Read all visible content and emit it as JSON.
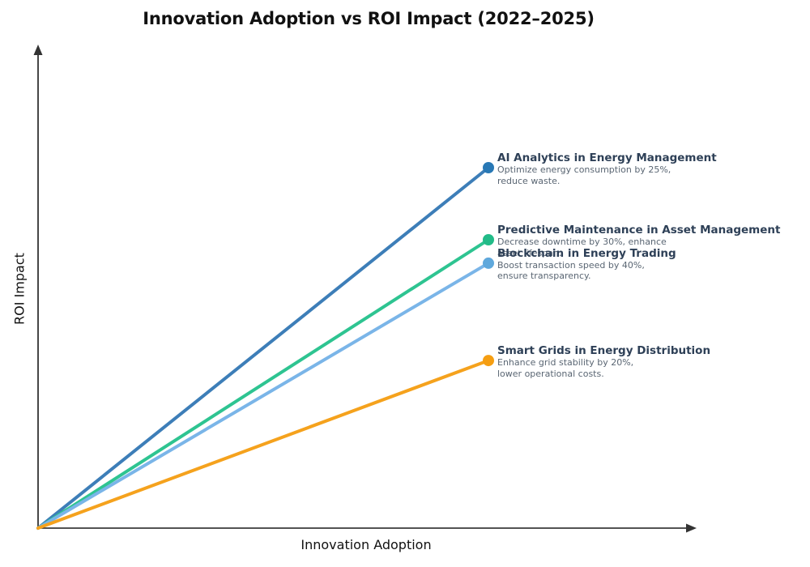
{
  "title": "Innovation Adoption vs ROI Impact (2022–2025)",
  "axes": {
    "x_label": "Innovation Adoption",
    "y_label": "ROI Impact"
  },
  "chart_data": {
    "type": "line",
    "title": "Innovation Adoption vs ROI Impact (2022–2025)",
    "xlabel": "Innovation Adoption",
    "ylabel": "ROI Impact",
    "grid": false,
    "legend": "none — each line labeled by annotation at its endpoint",
    "axis_ticks": "none (unlabeled conceptual axes with arrowheads)",
    "x_range": [
      0,
      1
    ],
    "y_range": [
      0,
      100
    ],
    "y_scale_note": "relative ROI impact estimated from pixel heights, 0–100",
    "axis_color": "#1a1a1a",
    "annotation_title_color": "#2e4057",
    "annotation_desc_color": "#5a6673",
    "series": [
      {
        "name": "AI Analytics in Energy Management",
        "description_lines": [
          "Optimize energy consumption by 25%,",
          "reduce waste."
        ],
        "points": [
          [
            0,
            0
          ],
          [
            1,
            100
          ]
        ],
        "end_value": 100,
        "color": "#3d7eb8",
        "dot_color": "#2878b5"
      },
      {
        "name": "Predictive Maintenance in Asset Management",
        "description_lines": [
          "Decrease downtime by 30%, enhance",
          "asset lifespan."
        ],
        "points": [
          [
            0,
            0
          ],
          [
            1,
            80
          ]
        ],
        "end_value": 80,
        "color": "#2ec491",
        "dot_color": "#22bb88"
      },
      {
        "name": "Blockchain in Energy Trading",
        "description_lines": [
          "Boost transaction speed by 40%,",
          "ensure transparency."
        ],
        "points": [
          [
            0,
            0
          ],
          [
            1,
            73.5
          ]
        ],
        "end_value": 73.5,
        "color": "#7ab5e8",
        "dot_color": "#5fa8dc"
      },
      {
        "name": "Smart Grids in Energy Distribution",
        "description_lines": [
          "Enhance grid stability by 20%,",
          "lower operational costs."
        ],
        "points": [
          [
            0,
            0
          ],
          [
            1,
            46.5
          ]
        ],
        "end_value": 46.5,
        "color": "#f5a21d",
        "dot_color": "#f59e12"
      }
    ]
  }
}
